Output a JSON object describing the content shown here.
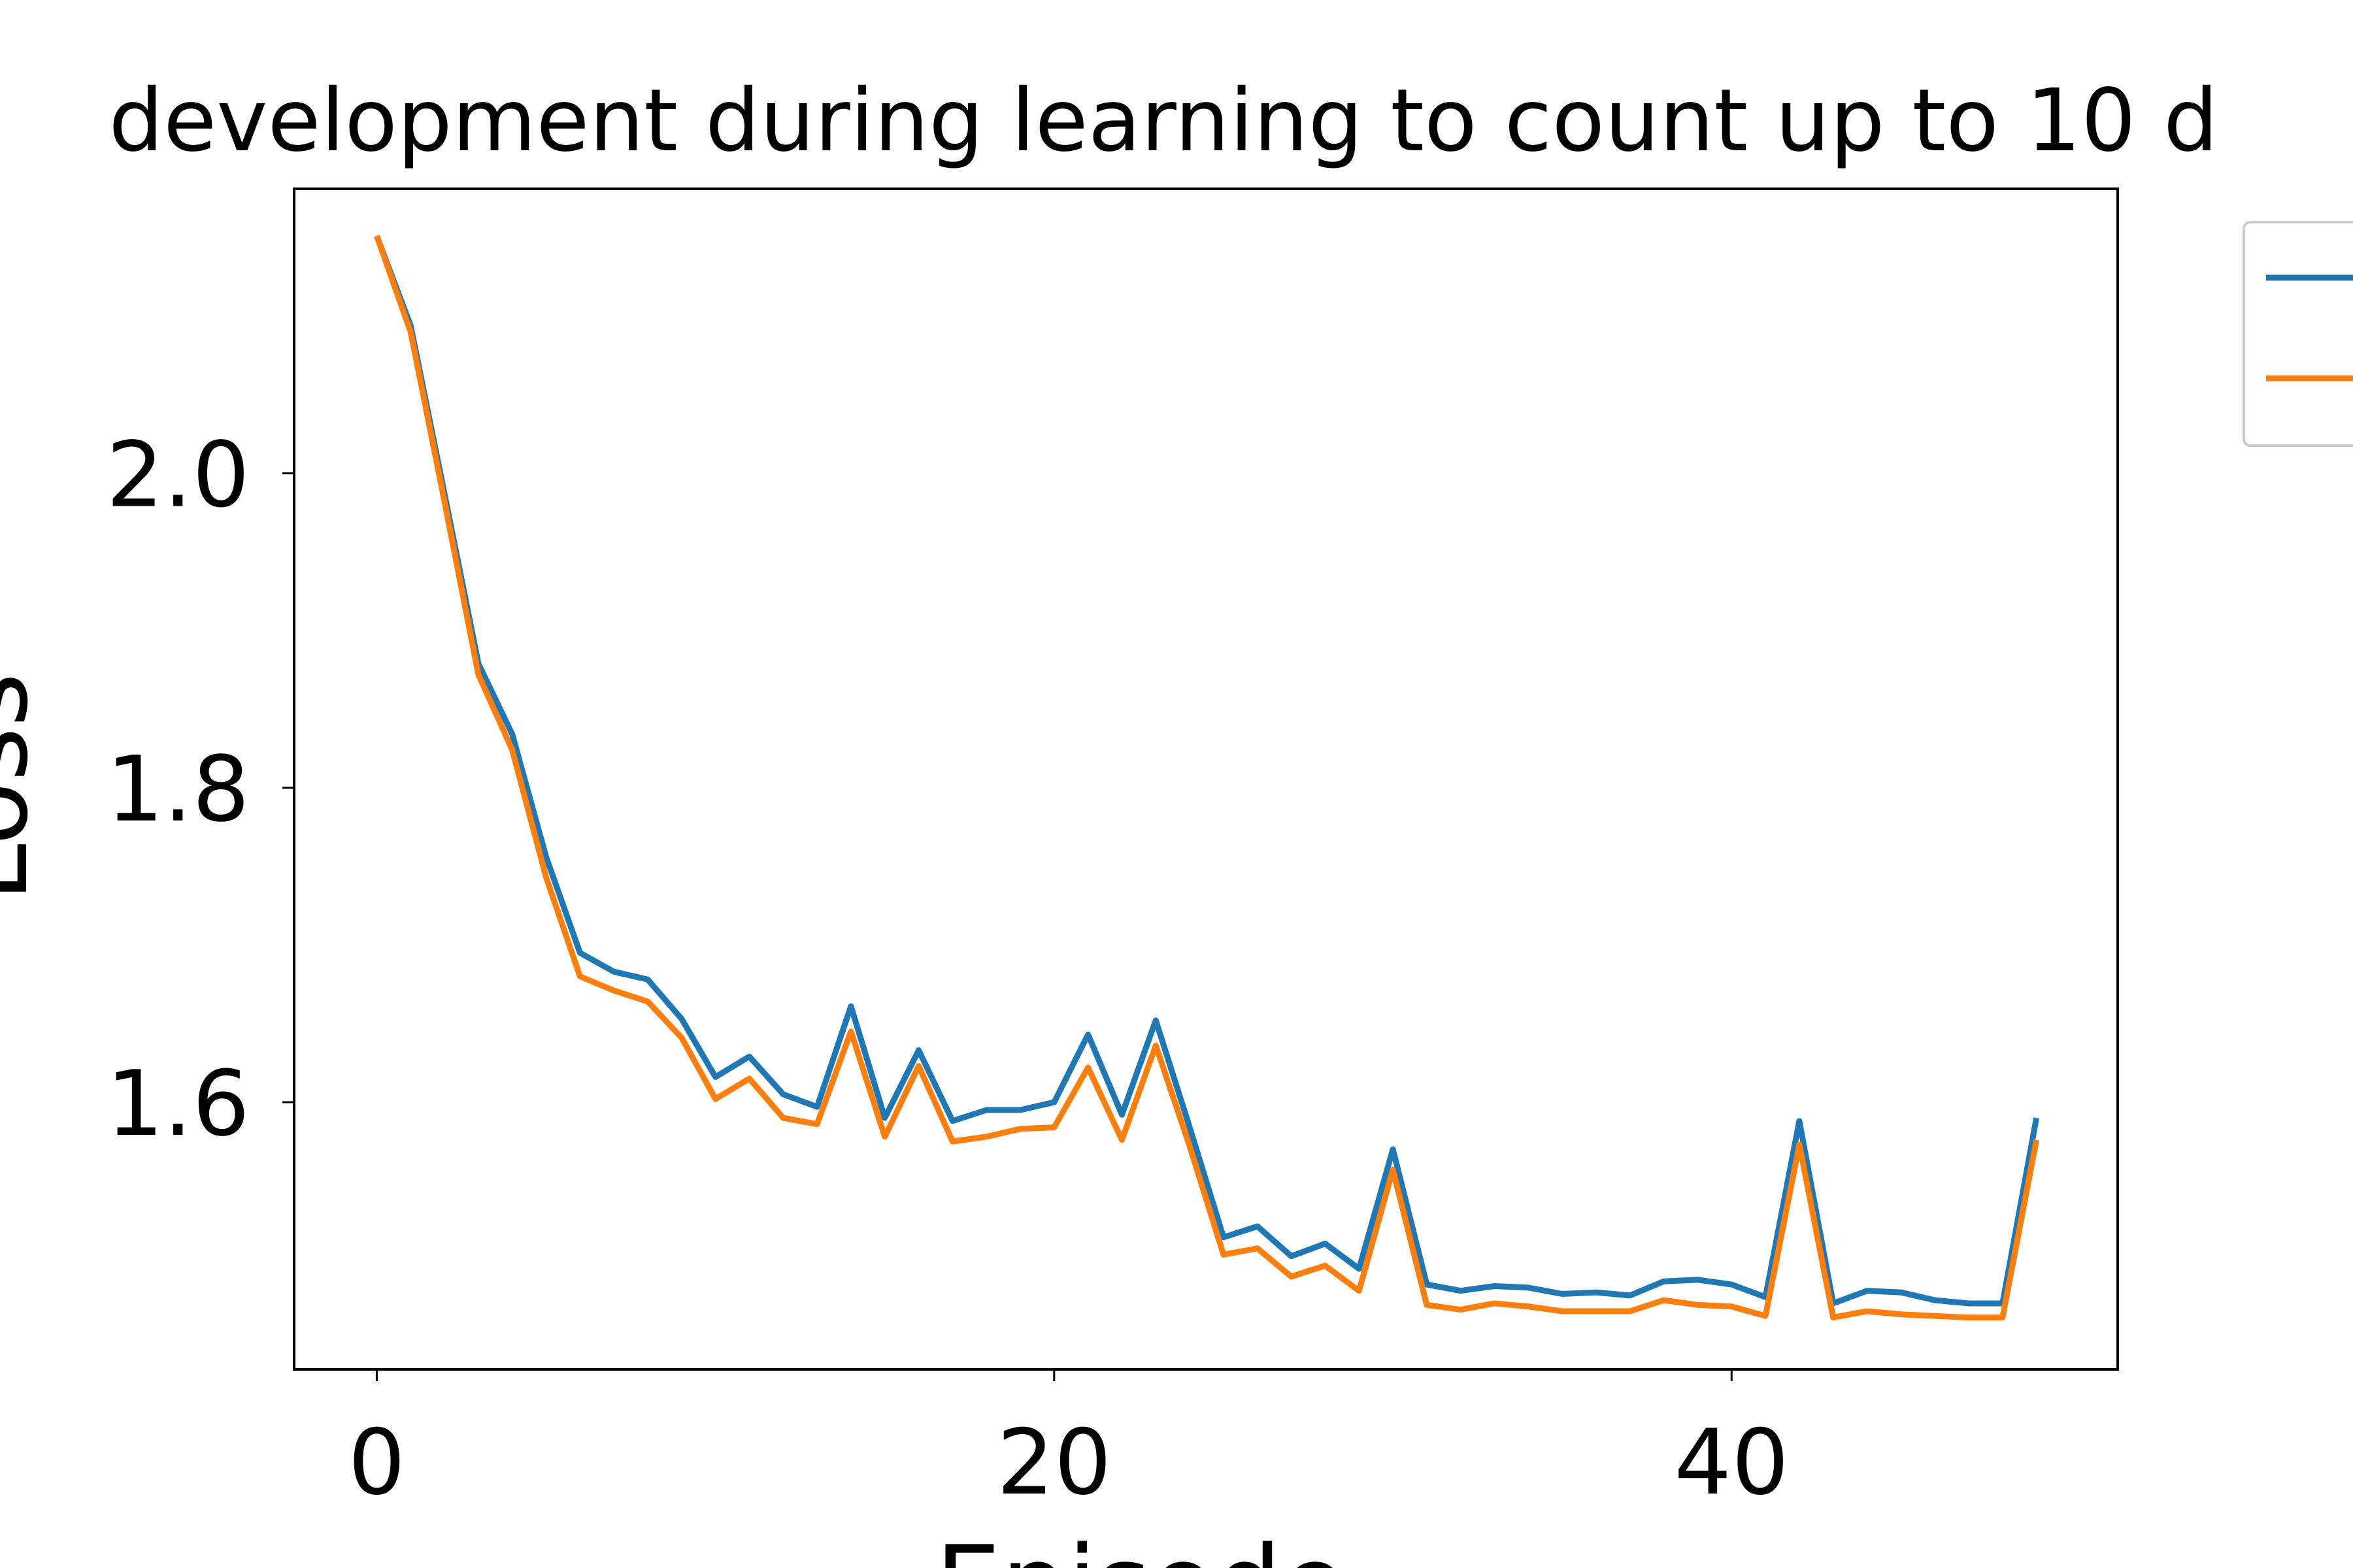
{
  "chart_data": {
    "type": "line",
    "title": "development during learning to count up to 10 d",
    "x_label": "Episode",
    "y_label": "Loss",
    "x": [
      0,
      1,
      2,
      3,
      4,
      5,
      6,
      7,
      8,
      9,
      10,
      11,
      12,
      13,
      14,
      15,
      16,
      17,
      18,
      19,
      20,
      21,
      22,
      23,
      24,
      25,
      26,
      27,
      28,
      29,
      30,
      31,
      32,
      33,
      34,
      35,
      36,
      37,
      38,
      39,
      40,
      41,
      42,
      43,
      44,
      45,
      46,
      47,
      48,
      49
    ],
    "series": [
      {
        "color": "#1f77b4",
        "values": [
          2.151,
          2.094,
          1.987,
          1.879,
          1.834,
          1.756,
          1.695,
          1.683,
          1.678,
          1.653,
          1.616,
          1.629,
          1.605,
          1.597,
          1.661,
          1.59,
          1.633,
          1.588,
          1.595,
          1.595,
          1.6,
          1.643,
          1.592,
          1.652,
          1.584,
          1.514,
          1.521,
          1.502,
          1.51,
          1.494,
          1.57,
          1.484,
          1.48,
          1.483,
          1.482,
          1.478,
          1.479,
          1.477,
          1.486,
          1.487,
          1.484,
          1.476,
          1.588,
          1.472,
          1.48,
          1.479,
          1.474,
          1.472,
          1.472,
          1.59
        ]
      },
      {
        "color": "#ff7f0e",
        "values": [
          2.151,
          2.09,
          1.982,
          1.872,
          1.824,
          1.743,
          1.68,
          1.671,
          1.664,
          1.641,
          1.602,
          1.615,
          1.59,
          1.586,
          1.645,
          1.578,
          1.623,
          1.575,
          1.578,
          1.583,
          1.584,
          1.622,
          1.576,
          1.636,
          1.572,
          1.503,
          1.507,
          1.489,
          1.496,
          1.48,
          1.557,
          1.471,
          1.468,
          1.472,
          1.47,
          1.467,
          1.467,
          1.467,
          1.474,
          1.471,
          1.47,
          1.464,
          1.573,
          1.463,
          1.467,
          1.465,
          1.464,
          1.463,
          1.463,
          1.576
        ]
      }
    ],
    "xlim": [
      -2.44,
      51.4
    ],
    "ylim": [
      1.43,
      2.181
    ],
    "xticks": [
      0,
      20,
      40
    ],
    "yticks": [
      {
        "value": 1.6,
        "label": "1.6"
      },
      {
        "value": 1.8,
        "label": "1.8"
      },
      {
        "value": 2.0,
        "label": "2.0"
      }
    ],
    "grid": false,
    "legend": "outside right"
  }
}
